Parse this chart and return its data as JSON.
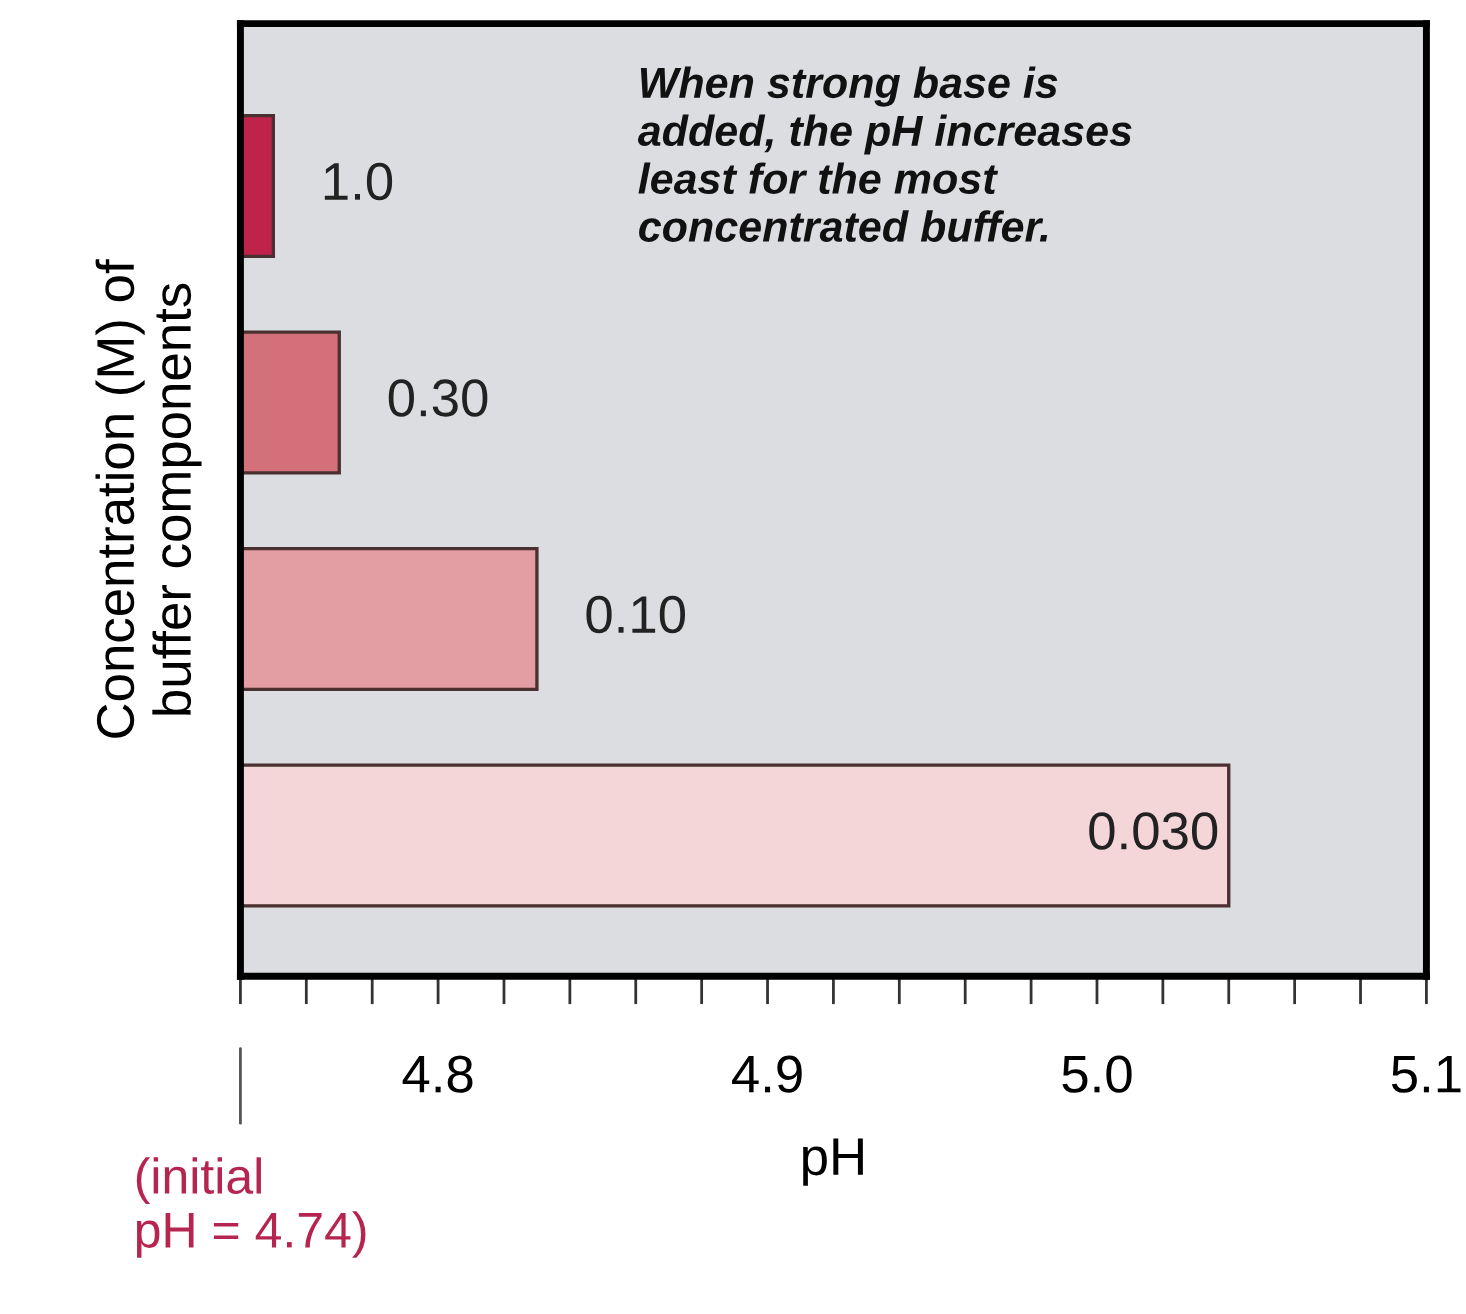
{
  "chart_data": {
    "type": "bar",
    "orientation": "horizontal",
    "ylabel": "Concentration (M) of\nbuffer components",
    "xlabel": "pH",
    "categories": [
      "1.0",
      "0.30",
      "0.10",
      "0.030"
    ],
    "values": [
      4.75,
      4.77,
      4.83,
      5.04
    ],
    "colors": [
      "#c0234a",
      "#d4707a",
      "#e29ea3",
      "#f4d6d8"
    ],
    "xlim": [
      4.74,
      5.1
    ],
    "xticks": [
      {
        "value": 4.74,
        "label": null
      },
      {
        "value": 4.76,
        "label": null
      },
      {
        "value": 4.78,
        "label": null
      },
      4.8,
      {
        "value": 4.82,
        "label": null
      },
      {
        "value": 4.84,
        "label": null
      },
      {
        "value": 4.86,
        "label": null
      },
      {
        "value": 4.88,
        "label": null
      },
      4.9,
      {
        "value": 4.92,
        "label": null
      },
      {
        "value": 4.94,
        "label": null
      },
      {
        "value": 4.96,
        "label": null
      },
      {
        "value": 4.98,
        "label": null
      },
      {
        "value": 5.0,
        "label": "5.0"
      },
      {
        "value": 5.02,
        "label": null
      },
      {
        "value": 5.04,
        "label": null
      },
      {
        "value": 5.06,
        "label": null
      },
      {
        "value": 5.08,
        "label": null
      },
      5.1
    ],
    "grid": false,
    "annotations": [
      "When strong base is\nadded, the pH increases\nleast for the most\nconcentrated buffer.",
      "(initial\npH = 4.74)"
    ]
  }
}
